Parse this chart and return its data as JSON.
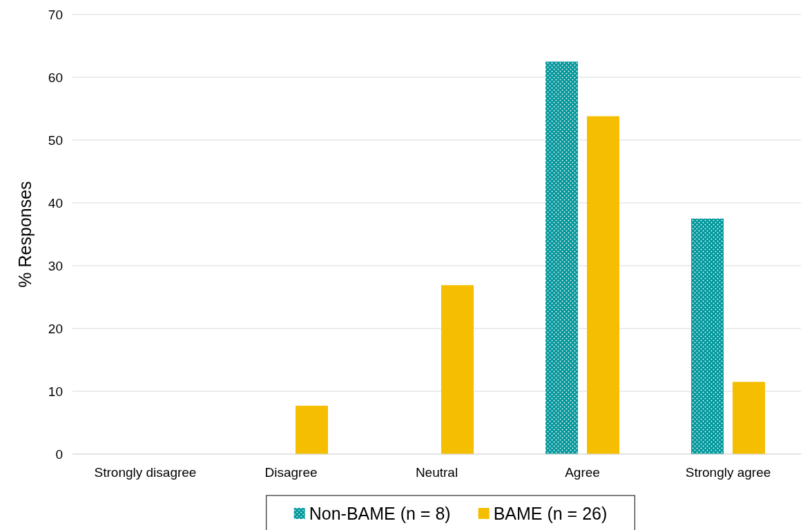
{
  "chart_data": {
    "type": "bar",
    "ylabel": "% Responses",
    "categories": [
      "Strongly disagree",
      "Disagree",
      "Neutral",
      "Agree",
      "Strongly agree"
    ],
    "series": [
      {
        "name": "Non-BAME (n = 8)",
        "color": "#00979b",
        "values": [
          0,
          0,
          0,
          62.5,
          37.5
        ]
      },
      {
        "name": "BAME (n = 26)",
        "color": "#f5be00",
        "values": [
          0,
          7.7,
          26.9,
          53.8,
          11.5
        ]
      }
    ],
    "ylim": [
      0,
      70
    ],
    "yticks": [
      0,
      10,
      20,
      30,
      40,
      50,
      60,
      70
    ],
    "grid": "y",
    "legend": "bottom"
  }
}
